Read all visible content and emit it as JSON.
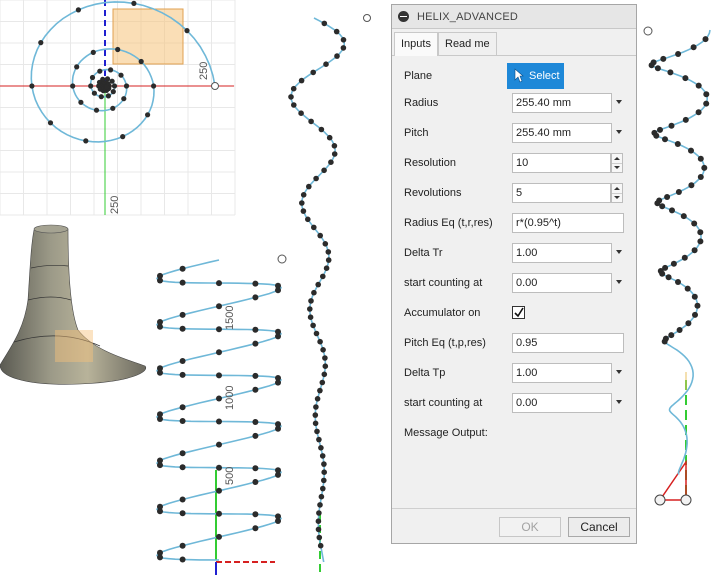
{
  "viewport": {
    "top_view_label_x": "250",
    "top_view_label_y": "250",
    "side_view_labels": [
      "1500",
      "1000",
      "500"
    ]
  },
  "dialog": {
    "title": "HELIX_ADVANCED",
    "tabs": [
      {
        "label": "Inputs",
        "active": true
      },
      {
        "label": "Read me",
        "active": false
      }
    ],
    "fields": {
      "plane": {
        "label": "Plane",
        "button": "Select"
      },
      "radius": {
        "label": "Radius",
        "value": "255.40 mm"
      },
      "pitch": {
        "label": "Pitch",
        "value": "255.40 mm"
      },
      "resolution": {
        "label": "Resolution",
        "value": "10"
      },
      "revolutions": {
        "label": "Revolutions",
        "value": "5"
      },
      "radius_eq": {
        "label": "Radius Eq (t,r,res)",
        "value": "r*(0.95^t)"
      },
      "delta_tr": {
        "label": "Delta Tr",
        "value": "1.00"
      },
      "start_tr": {
        "label": "start counting at",
        "value": "0.00"
      },
      "accumulator": {
        "label": "Accumulator on",
        "checked": true
      },
      "pitch_eq": {
        "label": "Pitch Eq (t,p,res)",
        "value": "0.95"
      },
      "delta_tp": {
        "label": "Delta Tp",
        "value": "1.00"
      },
      "start_tp": {
        "label": "start counting at",
        "value": "0.00"
      },
      "message": {
        "label": "Message Output:"
      }
    },
    "ok_label": "OK",
    "cancel_label": "Cancel"
  },
  "colors": {
    "curve": "#6fb8d8",
    "point": "#2b2b2b",
    "dialog_accent": "#1e88d8",
    "axis_red": "#d62020",
    "axis_green": "#22c022",
    "axis_blue": "#2020d0",
    "plane_fill": "#f6c27a"
  }
}
